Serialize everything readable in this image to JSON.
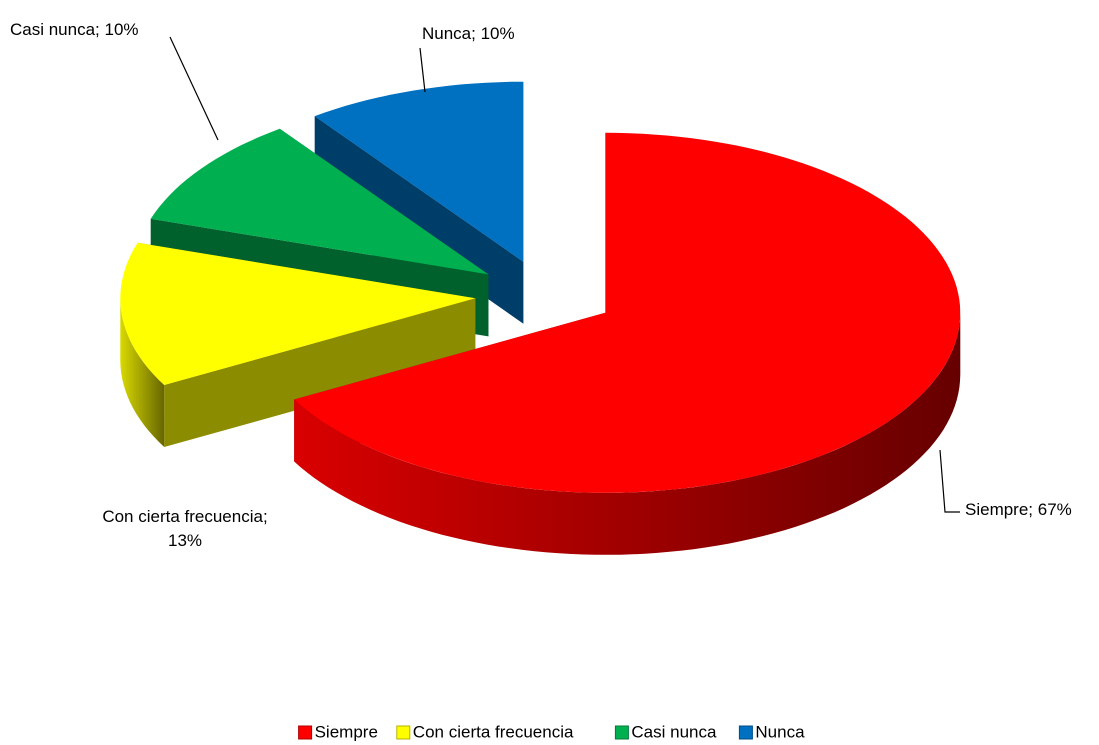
{
  "chart_data": {
    "type": "pie3d",
    "categories": [
      "Siempre",
      "Con cierta frecuencia",
      "Casi nunca",
      "Nunca"
    ],
    "values": [
      67,
      13,
      10,
      10
    ],
    "value_labels": [
      "Siempre; 67%",
      "Con cierta frecuencia; 13%",
      "Casi nunca; 10%",
      "Nunca; 10%"
    ],
    "colors": [
      "#ff0000",
      "#ffff00",
      "#00b050",
      "#0070c0"
    ],
    "legend": "bottom"
  }
}
